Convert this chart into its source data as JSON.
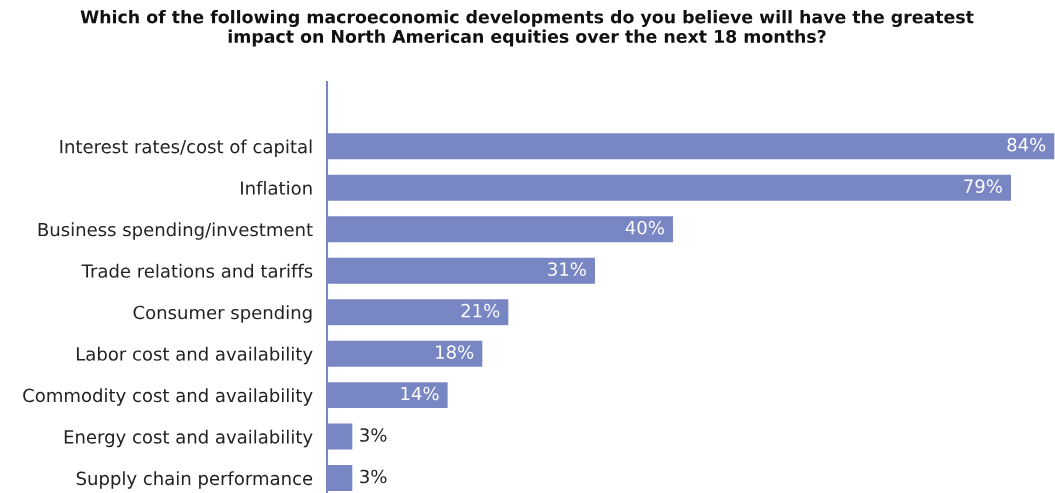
{
  "chart_data": {
    "type": "bar",
    "orientation": "horizontal",
    "title": "Which of the following macroeconomic developments do you believe will have the greatest\nimpact on North American equities over the next 18 months?",
    "categories": [
      "Interest rates/cost of capital",
      "Inflation",
      "Business spending/investment",
      "Trade relations and tariffs",
      "Consumer spending",
      "Labor cost and availability",
      "Commodity cost and availability",
      "Energy cost and availability",
      "Supply chain performance"
    ],
    "values": [
      84,
      79,
      40,
      31,
      21,
      18,
      14,
      3,
      3
    ],
    "value_labels": [
      "84%",
      "79%",
      "40%",
      "31%",
      "21%",
      "18%",
      "14%",
      "3%",
      "3%"
    ],
    "color": "#7986c4",
    "xlim": [
      0,
      84
    ],
    "tick_labels": "y",
    "grid": false,
    "legend": false
  }
}
